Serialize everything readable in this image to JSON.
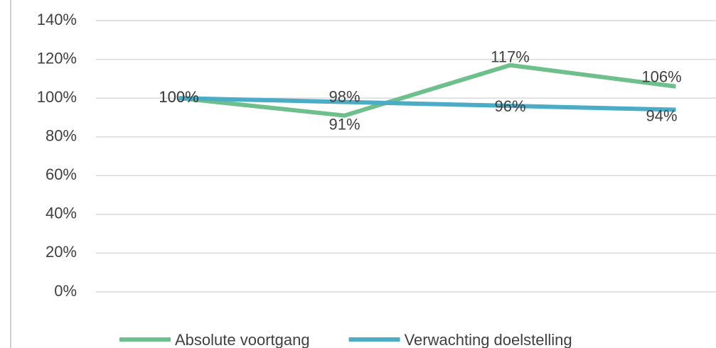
{
  "chart_data": {
    "type": "line",
    "categories": [
      null,
      null,
      null,
      null
    ],
    "series": [
      {
        "name": "Absolute voortgang",
        "color": "#6dbf8b",
        "values": [
          100,
          91,
          117,
          106
        ],
        "value_labels": [
          "100%",
          "91%",
          "117%",
          "106%"
        ]
      },
      {
        "name": "Verwachting doelstelling",
        "color": "#4bacc6",
        "values": [
          100,
          98,
          96,
          94
        ],
        "value_labels": [
          "100%",
          "98%",
          "96%",
          "94%"
        ]
      }
    ],
    "ylim": [
      0,
      140
    ],
    "yticks": [
      {
        "value": 0,
        "label": "0%"
      },
      {
        "value": 20,
        "label": "20%"
      },
      {
        "value": 40,
        "label": "40%"
      },
      {
        "value": 60,
        "label": "60%"
      },
      {
        "value": 80,
        "label": "80%"
      },
      {
        "value": 100,
        "label": "100%"
      },
      {
        "value": 120,
        "label": "120%"
      },
      {
        "value": 140,
        "label": "140%"
      }
    ],
    "grid": true,
    "legend": "bottom"
  }
}
